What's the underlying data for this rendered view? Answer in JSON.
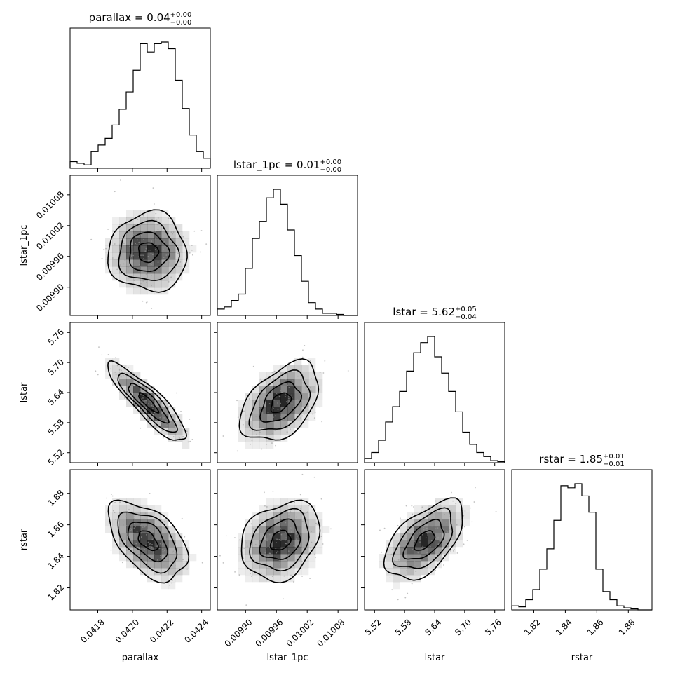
{
  "chart_data": {
    "type": "corner",
    "params": [
      "parallax",
      "lstar_1pc",
      "lstar",
      "rstar"
    ],
    "axis_labels": [
      "parallax",
      "lstar_1pc",
      "lstar",
      "rstar"
    ],
    "ranges": [
      [
        0.04164,
        0.04245
      ],
      [
        0.009845,
        0.010118
      ],
      [
        5.5,
        5.78
      ],
      [
        1.806,
        1.895
      ]
    ],
    "ticks": [
      [
        0.0418,
        0.042,
        0.0422,
        0.0424
      ],
      [
        0.0099,
        0.00996,
        0.01002,
        0.01008
      ],
      [
        5.52,
        5.58,
        5.64,
        5.7,
        5.76
      ],
      [
        1.82,
        1.84,
        1.86,
        1.88
      ]
    ],
    "tick_labels": [
      [
        "0.0418",
        "0.0420",
        "0.0422",
        "0.0424"
      ],
      [
        "0.00990",
        "0.00996",
        "0.01002",
        "0.01008"
      ],
      [
        "5.52",
        "5.58",
        "5.64",
        "5.70",
        "5.76"
      ],
      [
        "1.82",
        "1.84",
        "1.86",
        "1.88"
      ]
    ],
    "titles": [
      {
        "main": "parallax = 0.04",
        "sup": "+0.00",
        "sub": "−0.00"
      },
      {
        "main": "lstar_1pc = 0.01",
        "sup": "+0.00",
        "sub": "−0.00"
      },
      {
        "main": "lstar = 5.62",
        "sup": "+0.05",
        "sub": "−0.04"
      },
      {
        "main": "rstar = 1.85",
        "sup": "+0.01",
        "sub": "−0.01"
      }
    ],
    "histograms": [
      [
        8,
        6,
        4,
        20,
        28,
        36,
        52,
        71,
        92,
        118,
        150,
        140,
        150,
        152,
        144,
        106,
        72,
        40,
        20,
        12
      ],
      [
        6,
        8,
        14,
        20,
        44,
        72,
        88,
        110,
        118,
        104,
        80,
        56,
        32,
        12,
        6,
        2,
        2,
        1,
        0,
        0
      ],
      [
        4,
        10,
        22,
        40,
        55,
        70,
        90,
        108,
        118,
        124,
        104,
        88,
        70,
        50,
        30,
        18,
        10,
        6,
        2,
        1
      ],
      [
        4,
        3,
        10,
        20,
        40,
        60,
        88,
        122,
        120,
        124,
        112,
        96,
        40,
        18,
        10,
        4,
        2,
        1,
        0,
        0
      ]
    ],
    "correlations": {
      "lstar_1pc|parallax": 0.0,
      "lstar|parallax": -0.88,
      "lstar|lstar_1pc": 0.45,
      "rstar|parallax": -0.5,
      "rstar|lstar_1pc": 0.25,
      "rstar|lstar": 0.55
    },
    "centers": [
      0.04209,
      0.009968,
      5.62,
      1.85
    ],
    "colors": {
      "line": "#000000",
      "density": "#000000",
      "points": "#9a9a9a"
    }
  }
}
